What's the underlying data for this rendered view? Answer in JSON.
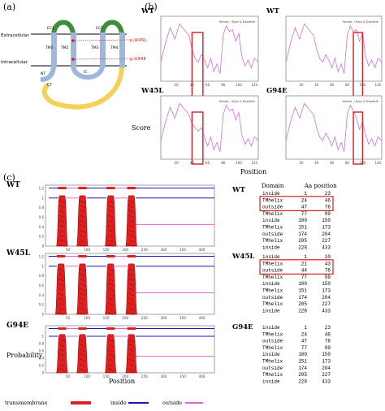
{
  "panel_labels": {
    "a": "(a)",
    "b": "(b)",
    "c": "(c)"
  },
  "topology": {
    "extracellular": "Extracellular",
    "intracellular": "Intracellular",
    "tm": [
      "TM1",
      "TM2",
      "TM3",
      "TM4"
    ],
    "ec": [
      "EC1",
      "EC2"
    ],
    "ic": "IC",
    "nt": "NT",
    "ct": "CT",
    "mut1": "p.W45L",
    "mut2": "p.G94E",
    "colors": {
      "ec": "#3f8f3a",
      "tm": "#9db8dc",
      "ct": "#f5d15a",
      "mut": "#cc2222",
      "membrane": "#000000"
    }
  },
  "hydro": {
    "legend": "Hphob. / Kyte & Doolittle",
    "ylabel": "Score",
    "xlabel": "Position",
    "xticks": [
      "20",
      "40",
      "60",
      "80",
      "100",
      "120"
    ],
    "panels": [
      "WT",
      "WT",
      "W45L",
      "G94E"
    ],
    "line_color": "#d070d0",
    "highlight_color": "#d42020"
  },
  "tmhmm": {
    "xlabel": "Position",
    "ylabel": "Probability",
    "rows": [
      "WT",
      "W45L",
      "G94E"
    ],
    "yticks": [
      "1.2",
      "1",
      "0.8",
      "0.6",
      "0.4",
      "0.2",
      "0"
    ],
    "xticks": [
      "50",
      "100",
      "150",
      "200",
      "250",
      "300",
      "350",
      "400"
    ],
    "legend": [
      "transmembrane",
      "inside",
      "outside"
    ],
    "colors": {
      "transmembrane": "#e02020",
      "inside": "#1a1ab0",
      "outside": "#e060d0"
    }
  },
  "domain_tables": {
    "header": [
      "Domain",
      "Aa position"
    ],
    "tables": [
      {
        "label": "WT",
        "highlight_rows": [
          1,
          2
        ],
        "rows": [
          [
            "inside",
            "1",
            "23"
          ],
          [
            "TMhelix",
            "24",
            "46"
          ],
          [
            "outside",
            "47",
            "76"
          ],
          [
            "TMhelix",
            "77",
            "99"
          ],
          [
            "inside",
            "100",
            "150"
          ],
          [
            "TMhelix",
            "151",
            "173"
          ],
          [
            "outside",
            "174",
            "204"
          ],
          [
            "TMhelix",
            "205",
            "227"
          ],
          [
            "inside",
            "228",
            "433"
          ]
        ]
      },
      {
        "label": "W45L",
        "highlight_rows": [
          1,
          2
        ],
        "rows": [
          [
            "inside",
            "1",
            "20"
          ],
          [
            "TMhelix",
            "21",
            "43"
          ],
          [
            "outside",
            "44",
            "76"
          ],
          [
            "TMhelix",
            "77",
            "99"
          ],
          [
            "inside",
            "100",
            "150"
          ],
          [
            "TMhelix",
            "151",
            "173"
          ],
          [
            "outside",
            "174",
            "204"
          ],
          [
            "TMhelix",
            "205",
            "227"
          ],
          [
            "inside",
            "228",
            "433"
          ]
        ]
      },
      {
        "label": "G94E",
        "highlight_rows": [],
        "rows": [
          [
            "inside",
            "1",
            "23"
          ],
          [
            "TMhelix",
            "24",
            "46"
          ],
          [
            "outside",
            "47",
            "76"
          ],
          [
            "TMhelix",
            "77",
            "99"
          ],
          [
            "inside",
            "100",
            "150"
          ],
          [
            "TMhelix",
            "151",
            "173"
          ],
          [
            "outside",
            "174",
            "204"
          ],
          [
            "TMhelix",
            "205",
            "227"
          ],
          [
            "inside",
            "228",
            "433"
          ]
        ]
      }
    ]
  },
  "chart_data": {
    "type": "line",
    "panels": [
      {
        "title": "WT",
        "xlim": [
          0,
          125
        ],
        "series": [
          {
            "x": [
              0,
              6,
              12,
              18,
              24,
              30,
              36,
              40,
              44,
              48,
              52,
              56,
              60,
              64,
              68,
              72,
              76,
              80,
              84,
              88,
              92,
              96,
              100,
              104,
              108,
              112,
              116,
              120,
              125
            ],
            "y": [
              -0.6,
              0.4,
              1.2,
              0.6,
              1.4,
              1.1,
              0.8,
              0.1,
              -0.4,
              -0.6,
              -0.2,
              -0.5,
              -0.9,
              -0.4,
              -1.1,
              -0.7,
              -1.2,
              0.8,
              1.3,
              1.0,
              1.1,
              0.5,
              0.9,
              -0.3,
              -0.8,
              -0.5,
              -0.9,
              -0.4,
              -0.6
            ]
          }
        ],
        "highlight_x": [
          40,
          54
        ]
      },
      {
        "title": "WT",
        "xlim": [
          0,
          125
        ],
        "series": [
          {
            "x": [
              0,
              6,
              12,
              18,
              24,
              30,
              36,
              40,
              44,
              48,
              52,
              56,
              60,
              64,
              68,
              72,
              76,
              80,
              84,
              88,
              92,
              96,
              100,
              104,
              108,
              112,
              116,
              120,
              125
            ],
            "y": [
              -0.6,
              0.4,
              1.2,
              0.6,
              1.4,
              1.1,
              0.8,
              0.1,
              -0.4,
              -0.6,
              -0.2,
              -0.5,
              -0.9,
              -0.4,
              -1.1,
              -0.7,
              -1.2,
              0.8,
              1.3,
              1.0,
              1.1,
              0.5,
              0.9,
              -0.3,
              -0.8,
              -0.5,
              -0.9,
              -0.4,
              -0.6
            ]
          }
        ],
        "highlight_x": [
          88,
          100
        ]
      },
      {
        "title": "W45L",
        "xlim": [
          0,
          125
        ],
        "series": [
          {
            "x": [
              0,
              6,
              12,
              18,
              24,
              30,
              36,
              40,
              44,
              48,
              52,
              56,
              60,
              64,
              68,
              72,
              76,
              80,
              84,
              88,
              92,
              96,
              100,
              104,
              108,
              112,
              116,
              120,
              125
            ],
            "y": [
              -0.6,
              0.4,
              1.2,
              0.6,
              1.4,
              1.1,
              0.8,
              0.3,
              0.1,
              -0.1,
              0.1,
              -0.4,
              -0.9,
              -0.4,
              -1.1,
              -0.7,
              -1.2,
              0.8,
              1.3,
              1.0,
              1.1,
              0.5,
              0.9,
              -0.3,
              -0.8,
              -0.5,
              -0.9,
              -0.4,
              -0.6
            ]
          }
        ],
        "highlight_x": [
          40,
          54
        ]
      },
      {
        "title": "G94E",
        "xlim": [
          0,
          125
        ],
        "series": [
          {
            "x": [
              0,
              6,
              12,
              18,
              24,
              30,
              36,
              40,
              44,
              48,
              52,
              56,
              60,
              64,
              68,
              72,
              76,
              80,
              84,
              88,
              92,
              96,
              100,
              104,
              108,
              112,
              116,
              120,
              125
            ],
            "y": [
              -0.6,
              0.4,
              1.2,
              0.6,
              1.4,
              1.1,
              0.8,
              0.1,
              -0.4,
              -0.6,
              -0.2,
              -0.5,
              -0.9,
              -0.4,
              -1.1,
              -0.7,
              -1.2,
              0.8,
              1.3,
              1.0,
              0.6,
              0.0,
              0.4,
              -0.3,
              -0.8,
              -0.5,
              -0.9,
              -0.4,
              -0.6
            ]
          }
        ],
        "highlight_x": [
          88,
          100
        ]
      }
    ],
    "tmhmm": {
      "type": "area",
      "xlim": [
        0,
        433
      ],
      "ylim": [
        0,
        1.2
      ],
      "tm_segments": {
        "WT": [
          [
            24,
            46
          ],
          [
            77,
            99
          ],
          [
            151,
            173
          ],
          [
            205,
            227
          ]
        ],
        "W45L": [
          [
            21,
            43
          ],
          [
            77,
            99
          ],
          [
            151,
            173
          ],
          [
            205,
            227
          ]
        ],
        "G94E": [
          [
            24,
            46
          ],
          [
            77,
            99
          ],
          [
            151,
            173
          ],
          [
            205,
            227
          ]
        ]
      },
      "outside_segments": [
        [
          47,
          76
        ],
        [
          174,
          204
        ]
      ],
      "inside_level": 1.0,
      "outside_level": 0.8,
      "tm_prob_peak": 1.05
    }
  }
}
